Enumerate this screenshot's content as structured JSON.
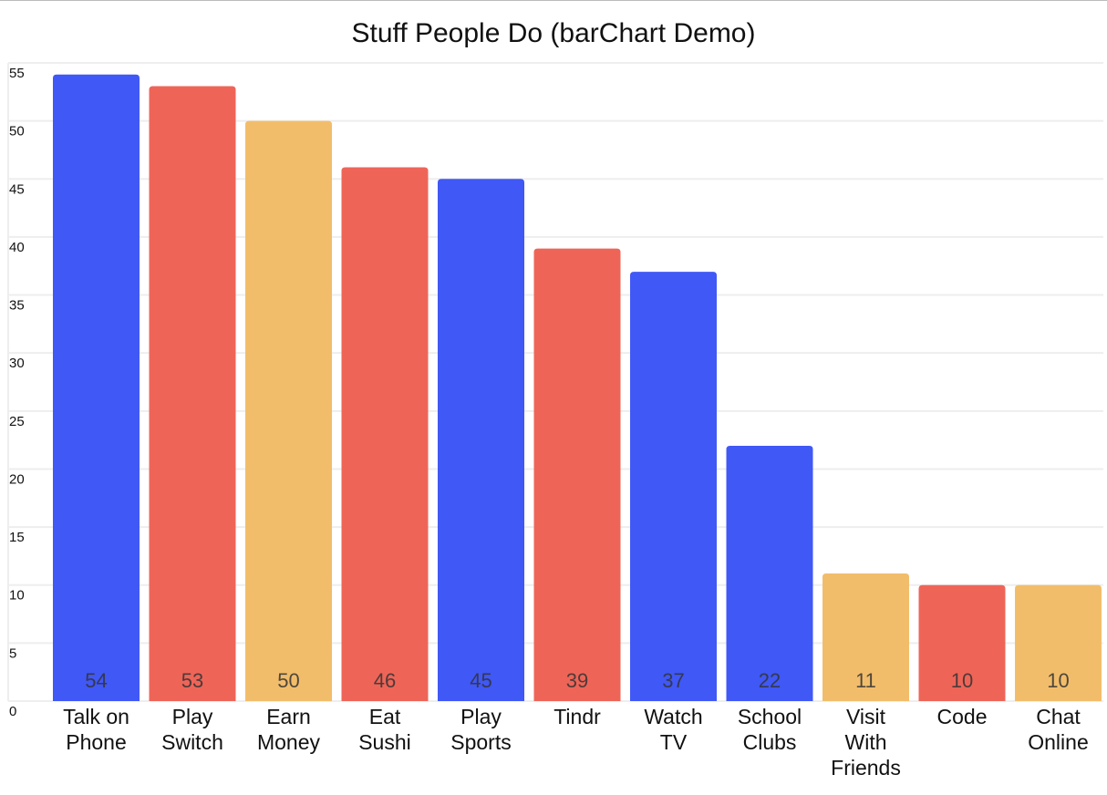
{
  "chart_data": {
    "type": "bar",
    "title": "Stuff People Do (barChart Demo)",
    "xlabel": "",
    "ylabel": "",
    "ylim": [
      0,
      55
    ],
    "yticks": [
      0,
      5,
      10,
      15,
      20,
      25,
      30,
      35,
      40,
      45,
      50,
      55
    ],
    "grid": true,
    "categories": [
      [
        "Talk on",
        "Phone"
      ],
      [
        "Play",
        "Switch"
      ],
      [
        "Earn",
        "Money"
      ],
      [
        "Eat",
        "Sushi"
      ],
      [
        "Play",
        "Sports"
      ],
      [
        "Tindr"
      ],
      [
        "Watch",
        "TV"
      ],
      [
        "School",
        "Clubs"
      ],
      [
        "Visit",
        "With",
        "Friends"
      ],
      [
        "Code"
      ],
      [
        "Chat",
        "Online"
      ]
    ],
    "values": [
      54,
      53,
      50,
      46,
      45,
      39,
      37,
      22,
      11,
      10,
      10
    ],
    "bar_colors": [
      "#4058f6",
      "#ee6558",
      "#f2bd6b",
      "#ee6558",
      "#4058f6",
      "#ee6558",
      "#4058f6",
      "#4058f6",
      "#f2bd6b",
      "#ee6558",
      "#f2bd6b"
    ]
  }
}
